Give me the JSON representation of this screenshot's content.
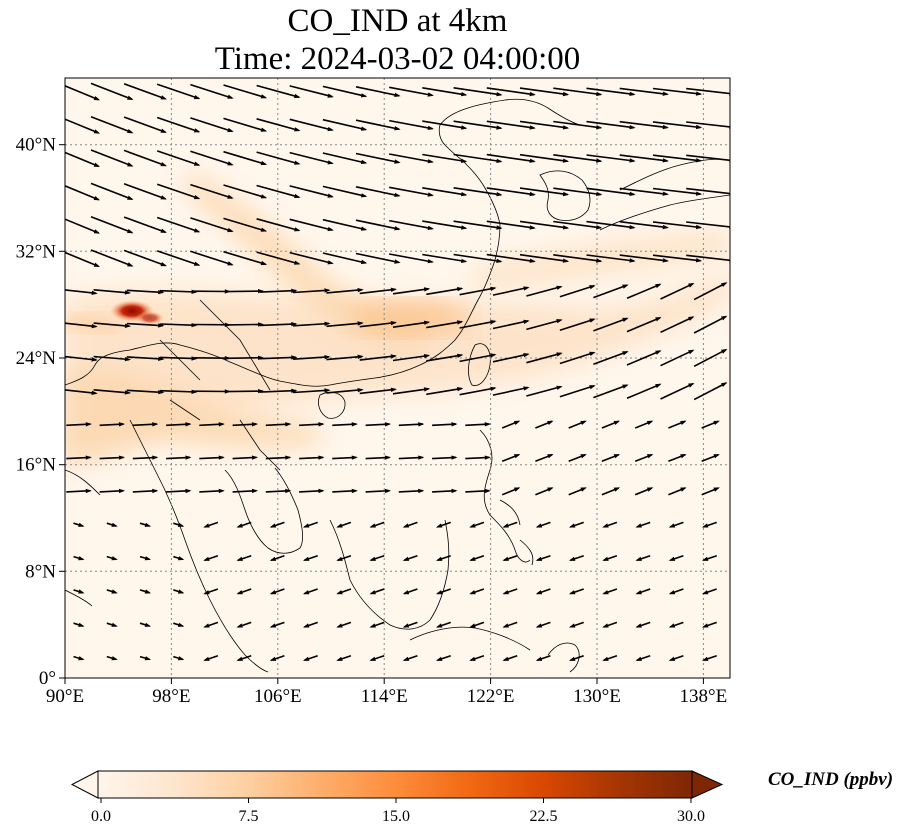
{
  "title": {
    "line1": "CO_IND at 4km",
    "line2": "Time: 2024-03-02 04:00:00"
  },
  "map": {
    "lon_range": [
      90,
      140
    ],
    "lat_range": [
      0,
      45
    ],
    "x_ticks": [
      "90°E",
      "98°E",
      "106°E",
      "114°E",
      "122°E",
      "130°E",
      "138°E"
    ],
    "y_ticks": [
      "0°",
      "8°N",
      "16°N",
      "24°N",
      "32°N",
      "40°N"
    ],
    "gridlines": "dotted"
  },
  "colorbar": {
    "label": "CO_IND (ppbv)",
    "ticks": [
      "0.0",
      "7.5",
      "15.0",
      "22.5",
      "30.0"
    ],
    "range": [
      0,
      30
    ],
    "extend": "both",
    "colormap": [
      "#fff5eb",
      "#fee6ce",
      "#fdd0a2",
      "#fdae6b",
      "#fd8d3c",
      "#f16913",
      "#d94801",
      "#a63603",
      "#7f2704"
    ]
  },
  "colors": {
    "arrows": "#000000",
    "coastline": "#000000",
    "grid": "#888888"
  }
}
